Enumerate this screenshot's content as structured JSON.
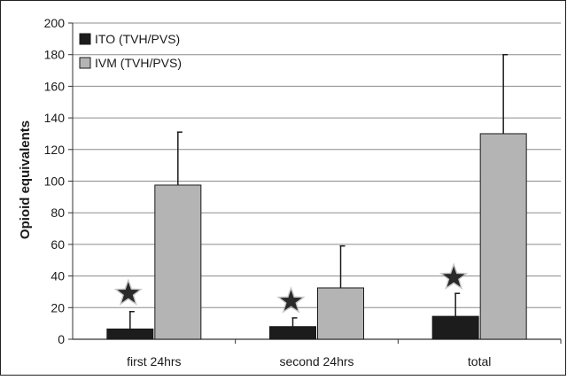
{
  "chart_data": {
    "type": "bar",
    "ylabel": "Opioid equivalents",
    "xlabel": "",
    "ylim": [
      0,
      200
    ],
    "yticks": [
      0,
      20,
      40,
      60,
      80,
      100,
      120,
      140,
      160,
      180,
      200
    ],
    "grid": true,
    "legend_position": "top-left",
    "categories": [
      "first 24hrs",
      "second 24hrs",
      "total"
    ],
    "series": [
      {
        "name": "ITO (TVH/PVS)",
        "color": "#1c1c1c",
        "values": [
          6.5,
          8,
          14.5
        ],
        "error_upper": [
          17.5,
          13.5,
          29
        ]
      },
      {
        "name": "IVM (TVH/PVS)",
        "color": "#b4b4b4",
        "values": [
          97.5,
          32.5,
          130
        ],
        "error_upper": [
          131,
          59,
          180
        ]
      }
    ],
    "annotations": [
      {
        "symbol": "star",
        "category": "first 24hrs",
        "series": "ITO (TVH/PVS)",
        "y": 29
      },
      {
        "symbol": "star",
        "category": "second 24hrs",
        "series": "ITO (TVH/PVS)",
        "y": 24
      },
      {
        "symbol": "star",
        "category": "total",
        "series": "ITO (TVH/PVS)",
        "y": 39
      }
    ]
  }
}
